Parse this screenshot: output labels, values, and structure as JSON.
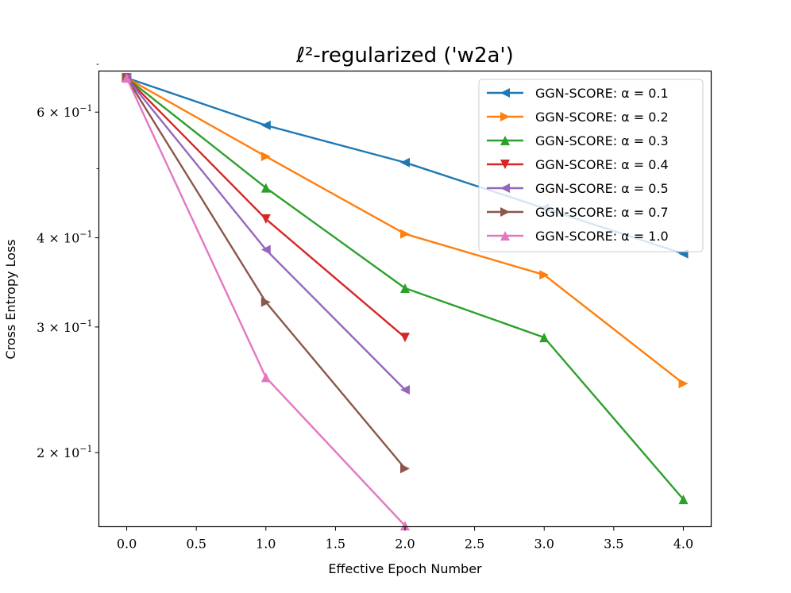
{
  "chart_data": {
    "type": "line",
    "title": "ℓ²-regularized ('w2a')",
    "xlabel": "Effective Epoch Number",
    "ylabel": "Cross Entropy Loss",
    "yscale": "log",
    "xlim": [
      -0.2,
      4.2
    ],
    "ylim": [
      0.1575,
      0.685
    ],
    "xticks": [
      0.0,
      0.5,
      1.0,
      1.5,
      2.0,
      2.5,
      3.0,
      3.5,
      4.0
    ],
    "xtick_labels": [
      "0.0",
      "0.5",
      "1.0",
      "1.5",
      "2.0",
      "2.5",
      "3.0",
      "3.5",
      "4.0"
    ],
    "yticks": [
      {
        "value": 0.6,
        "base": "6",
        "exp": "−1"
      },
      {
        "value": 0.4,
        "base": "4",
        "exp": "−1"
      },
      {
        "value": 0.3,
        "base": "3",
        "exp": "−1"
      },
      {
        "value": 0.2,
        "base": "2",
        "exp": "−1"
      }
    ],
    "legend_position": "top-right",
    "series": [
      {
        "name": "GGN-SCORE: α = 0.1",
        "color": "#1f77b4",
        "marker": "triangle-left",
        "x": [
          0,
          1,
          2,
          3,
          4
        ],
        "y": [
          0.67,
          0.575,
          0.51,
          0.44,
          0.38
        ]
      },
      {
        "name": "GGN-SCORE: α = 0.2",
        "color": "#ff7f0e",
        "marker": "triangle-right",
        "x": [
          0,
          1,
          2,
          3,
          4
        ],
        "y": [
          0.67,
          0.52,
          0.405,
          0.355,
          0.25
        ]
      },
      {
        "name": "GGN-SCORE: α = 0.3",
        "color": "#2ca02c",
        "marker": "triangle-up",
        "x": [
          0,
          1,
          2,
          3,
          4
        ],
        "y": [
          0.67,
          0.47,
          0.34,
          0.29,
          0.172
        ]
      },
      {
        "name": "GGN-SCORE: α = 0.4",
        "color": "#d62728",
        "marker": "triangle-down",
        "x": [
          0,
          1,
          2
        ],
        "y": [
          0.67,
          0.425,
          0.29
        ]
      },
      {
        "name": "GGN-SCORE: α = 0.5",
        "color": "#9467bd",
        "marker": "triangle-left",
        "x": [
          0,
          1,
          2
        ],
        "y": [
          0.67,
          0.385,
          0.245
        ]
      },
      {
        "name": "GGN-SCORE: α = 0.7",
        "color": "#8c564b",
        "marker": "triangle-right",
        "x": [
          0,
          1,
          2
        ],
        "y": [
          0.67,
          0.325,
          0.19
        ]
      },
      {
        "name": "GGN-SCORE: α = 1.0",
        "color": "#e377c2",
        "marker": "triangle-up",
        "x": [
          0,
          1,
          2
        ],
        "y": [
          0.67,
          0.255,
          0.158
        ]
      }
    ]
  }
}
